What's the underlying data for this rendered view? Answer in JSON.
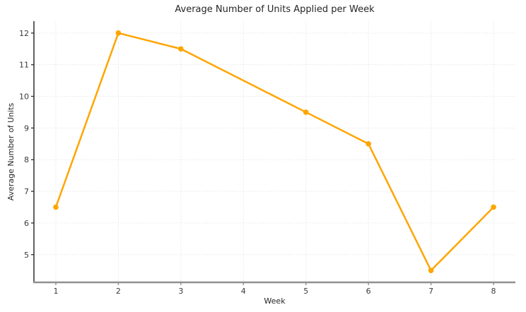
{
  "chart_data": {
    "type": "line",
    "title": "Average Number of Units Applied per Week",
    "xlabel": "Week",
    "ylabel": "Average Number of Units",
    "x": [
      1,
      2,
      3,
      5,
      6,
      7,
      8
    ],
    "values": [
      6.5,
      12.0,
      11.5,
      9.5,
      8.5,
      4.5,
      6.5
    ],
    "x_ticks": [
      1,
      2,
      3,
      4,
      5,
      6,
      7,
      8
    ],
    "y_ticks": [
      5,
      6,
      7,
      8,
      9,
      10,
      11,
      12
    ],
    "xlim": [
      0.65,
      8.35
    ],
    "ylim": [
      4.125,
      12.375
    ],
    "grid": true,
    "grid_style": "dotted",
    "legend": "none",
    "line_color": "#FFA500",
    "marker_color": "#FFA500",
    "grid_color": "#DBDBDB",
    "left_spine_color": "#3a3a3a",
    "bottom_spine_color": "#8f8f8f",
    "text_color": "#262626",
    "background_color": "#ffffff"
  }
}
